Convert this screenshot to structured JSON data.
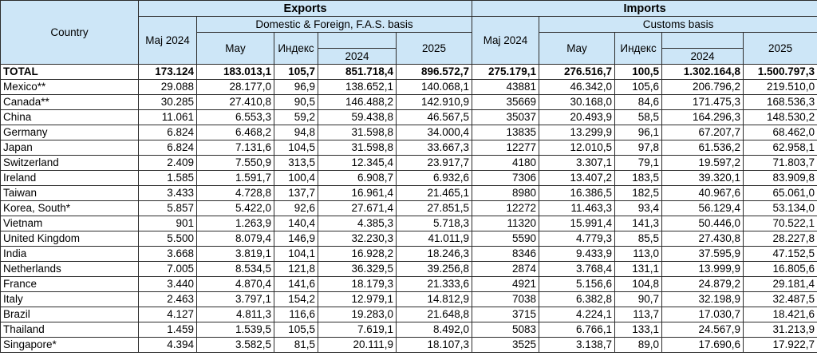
{
  "header": {
    "country": "Country",
    "exports": "Exports",
    "imports": "Imports",
    "exports_basis": "Domestic & Foreign, F.A.S. basis",
    "imports_basis": "Customs basis",
    "maj2024": "Maj 2024",
    "may": "May",
    "index": "Индекс",
    "y2024": "2024",
    "y2025": "2025"
  },
  "rows": [
    {
      "country": "TOTAL",
      "ex_maj2024": "173.124",
      "ex_may": "183.013,1",
      "ex_index": "105,7",
      "ex_2024": "851.718,4",
      "ex_2025": "896.572,7",
      "im_maj2024": "275.179,1",
      "im_may": "276.516,7",
      "im_index": "100,5",
      "im_2024": "1.302.164,8",
      "im_2025": "1.500.797,3"
    },
    {
      "country": "Mexico**",
      "ex_maj2024": "29.088",
      "ex_may": "28.177,0",
      "ex_index": "96,9",
      "ex_2024": "138.652,1",
      "ex_2025": "140.068,1",
      "im_maj2024": "43881",
      "im_may": "46.342,0",
      "im_index": "105,6",
      "im_2024": "206.796,2",
      "im_2025": "219.510,0"
    },
    {
      "country": "Canada**",
      "ex_maj2024": "30.285",
      "ex_may": "27.410,8",
      "ex_index": "90,5",
      "ex_2024": "146.488,2",
      "ex_2025": "142.910,9",
      "im_maj2024": "35669",
      "im_may": "30.168,0",
      "im_index": "84,6",
      "im_2024": "171.475,3",
      "im_2025": "168.536,3"
    },
    {
      "country": "China",
      "ex_maj2024": "11.061",
      "ex_may": "6.553,3",
      "ex_index": "59,2",
      "ex_2024": "59.438,8",
      "ex_2025": "46.567,5",
      "im_maj2024": "35037",
      "im_may": "20.493,9",
      "im_index": "58,5",
      "im_2024": "164.296,3",
      "im_2025": "148.530,2"
    },
    {
      "country": "Germany",
      "ex_maj2024": "6.824",
      "ex_may": "6.468,2",
      "ex_index": "94,8",
      "ex_2024": "31.598,8",
      "ex_2025": "34.000,4",
      "im_maj2024": "13835",
      "im_may": "13.299,9",
      "im_index": "96,1",
      "im_2024": "67.207,7",
      "im_2025": "68.462,0"
    },
    {
      "country": "Japan",
      "ex_maj2024": "6.824",
      "ex_may": "7.131,6",
      "ex_index": "104,5",
      "ex_2024": "31.598,8",
      "ex_2025": "33.667,3",
      "im_maj2024": "12277",
      "im_may": "12.010,5",
      "im_index": "97,8",
      "im_2024": "61.536,2",
      "im_2025": "62.958,1"
    },
    {
      "country": "Switzerland",
      "ex_maj2024": "2.409",
      "ex_may": "7.550,9",
      "ex_index": "313,5",
      "ex_2024": "12.345,4",
      "ex_2025": "23.917,7",
      "im_maj2024": "4180",
      "im_may": "3.307,1",
      "im_index": "79,1",
      "im_2024": "19.597,2",
      "im_2025": "71.803,7"
    },
    {
      "country": "Ireland",
      "ex_maj2024": "1.585",
      "ex_may": "1.591,7",
      "ex_index": "100,4",
      "ex_2024": "6.908,7",
      "ex_2025": "6.932,6",
      "im_maj2024": "7306",
      "im_may": "13.407,2",
      "im_index": "183,5",
      "im_2024": "39.320,1",
      "im_2025": "83.909,8"
    },
    {
      "country": "Taiwan",
      "ex_maj2024": "3.433",
      "ex_may": "4.728,8",
      "ex_index": "137,7",
      "ex_2024": "16.961,4",
      "ex_2025": "21.465,1",
      "im_maj2024": "8980",
      "im_may": "16.386,5",
      "im_index": "182,5",
      "im_2024": "40.967,6",
      "im_2025": "65.061,0"
    },
    {
      "country": "Korea, South*",
      "ex_maj2024": "5.857",
      "ex_may": "5.422,0",
      "ex_index": "92,6",
      "ex_2024": "27.671,4",
      "ex_2025": "27.851,5",
      "im_maj2024": "12272",
      "im_may": "11.463,3",
      "im_index": "93,4",
      "im_2024": "56.129,4",
      "im_2025": "53.134,0"
    },
    {
      "country": "Vietnam",
      "ex_maj2024": "901",
      "ex_may": "1.263,9",
      "ex_index": "140,4",
      "ex_2024": "4.385,3",
      "ex_2025": "5.718,3",
      "im_maj2024": "11320",
      "im_may": "15.991,4",
      "im_index": "141,3",
      "im_2024": "50.446,0",
      "im_2025": "70.522,1"
    },
    {
      "country": "United Kingdom",
      "ex_maj2024": "5.500",
      "ex_may": "8.079,4",
      "ex_index": "146,9",
      "ex_2024": "32.230,3",
      "ex_2025": "41.011,9",
      "im_maj2024": "5590",
      "im_may": "4.779,3",
      "im_index": "85,5",
      "im_2024": "27.430,8",
      "im_2025": "28.227,8"
    },
    {
      "country": "India",
      "ex_maj2024": "3.668",
      "ex_may": "3.819,1",
      "ex_index": "104,1",
      "ex_2024": "16.928,2",
      "ex_2025": "18.246,3",
      "im_maj2024": "8346",
      "im_may": "9.433,9",
      "im_index": "113,0",
      "im_2024": "37.595,9",
      "im_2025": "47.152,5"
    },
    {
      "country": "Netherlands",
      "ex_maj2024": "7.005",
      "ex_may": "8.534,5",
      "ex_index": "121,8",
      "ex_2024": "36.329,5",
      "ex_2025": "39.256,8",
      "im_maj2024": "2874",
      "im_may": "3.768,4",
      "im_index": "131,1",
      "im_2024": "13.999,9",
      "im_2025": "16.805,6"
    },
    {
      "country": "France",
      "ex_maj2024": "3.440",
      "ex_may": "4.870,4",
      "ex_index": "141,6",
      "ex_2024": "18.179,3",
      "ex_2025": "21.333,6",
      "im_maj2024": "4921",
      "im_may": "5.156,6",
      "im_index": "104,8",
      "im_2024": "24.879,2",
      "im_2025": "29.181,4"
    },
    {
      "country": "Italy",
      "ex_maj2024": "2.463",
      "ex_may": "3.797,1",
      "ex_index": "154,2",
      "ex_2024": "12.979,1",
      "ex_2025": "14.812,9",
      "im_maj2024": "7038",
      "im_may": "6.382,8",
      "im_index": "90,7",
      "im_2024": "32.198,9",
      "im_2025": "32.487,5"
    },
    {
      "country": "Brazil",
      "ex_maj2024": "4.127",
      "ex_may": "4.811,3",
      "ex_index": "116,6",
      "ex_2024": "19.283,0",
      "ex_2025": "21.648,8",
      "im_maj2024": "3715",
      "im_may": "4.224,1",
      "im_index": "113,7",
      "im_2024": "17.030,7",
      "im_2025": "18.421,6"
    },
    {
      "country": "Thailand",
      "ex_maj2024": "1.459",
      "ex_may": "1.539,5",
      "ex_index": "105,5",
      "ex_2024": "7.619,1",
      "ex_2025": "8.492,0",
      "im_maj2024": "5083",
      "im_may": "6.766,1",
      "im_index": "133,1",
      "im_2024": "24.567,9",
      "im_2025": "31.213,9"
    },
    {
      "country": "Singapore*",
      "ex_maj2024": "4.394",
      "ex_may": "3.582,5",
      "ex_index": "81,5",
      "ex_2024": "20.111,9",
      "ex_2025": "18.107,3",
      "im_maj2024": "3525",
      "im_may": "3.138,7",
      "im_index": "89,0",
      "im_2024": "17.690,6",
      "im_2025": "17.922,7"
    }
  ]
}
